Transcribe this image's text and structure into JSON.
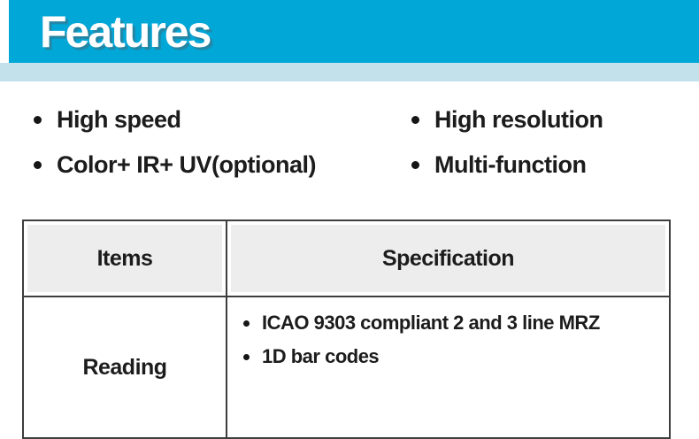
{
  "header": {
    "title": "Features"
  },
  "features": {
    "columns": [
      {
        "items": [
          "High speed",
          "Color+ IR+ UV(optional)"
        ]
      },
      {
        "items": [
          "High resolution",
          "Multi-function"
        ]
      }
    ]
  },
  "table": {
    "headers": [
      "Items",
      "Specification"
    ],
    "rows": [
      {
        "item": "Reading",
        "specs": [
          "ICAO 9303 compliant 2 and 3 line MRZ",
          "1D bar codes"
        ]
      }
    ]
  },
  "colors": {
    "banner": "#00a7d7",
    "strip": "#c2e1eb",
    "header_bg": "#ededed",
    "border": "#3d3d3d",
    "text": "#1c1c1c"
  }
}
